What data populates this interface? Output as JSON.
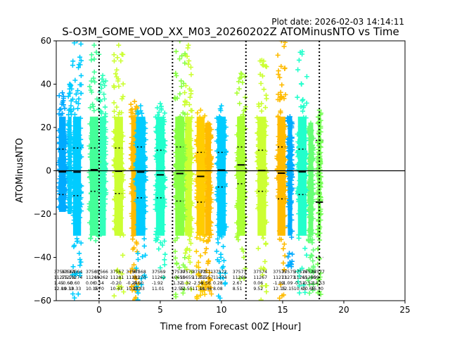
{
  "plot_date": "Plot date: 2026-02-03 14:14:11",
  "chart_data": {
    "type": "scatter",
    "title": "S-O3M_GOME_VOD_XX_M03_20260202Z ATOMinusNTO vs Time",
    "xlabel": "Time from Forecast 00Z [Hour]",
    "ylabel": "ATOMinusNTO",
    "xlim": [
      -3.5,
      25
    ],
    "ylim": [
      -60,
      60
    ],
    "xticks": [
      0,
      5,
      10,
      15,
      20,
      25
    ],
    "yticks": [
      -60,
      -40,
      -20,
      0,
      20,
      40,
      60
    ],
    "zero_line": 0,
    "vertical_lines": [
      0,
      6,
      12,
      18
    ],
    "orbits": [
      {
        "x": -3.0,
        "orbit": "37563",
        "count": "11275",
        "mean": "1.45",
        "std": "12.89",
        "color": "#00aaff",
        "top": 36,
        "bottom": -19,
        "median": -0.5,
        "width": 0.55,
        "upper": 10,
        "lower": -11
      },
      {
        "x": -1.8,
        "orbit": "37564",
        "count": "11274",
        "mean": "-0.60",
        "std": "10.33",
        "color": "#00ccff",
        "top": 60,
        "bottom": -60,
        "median": -0.6,
        "width": 0.65,
        "upper": 10.5,
        "lower": -11.5
      },
      {
        "x": -0.4,
        "orbit": "37565",
        "count": "11269",
        "mean": "0.06",
        "std": "10.15",
        "color": "#44ff99",
        "top": 58,
        "bottom": -33,
        "median": 0.5,
        "width": 0.7,
        "upper": 10.5,
        "lower": -9.5
      },
      {
        "x": 1.6,
        "orbit": "37567",
        "count": "11281",
        "mean": "-0.20",
        "std": "10.43",
        "color": "#ccff33",
        "top": 58,
        "bottom": -60,
        "median": -0.2,
        "width": 0.7,
        "upper": 10.5,
        "lower": -10.5
      },
      {
        "x": 3.4,
        "orbit": "37568",
        "count": "11270",
        "mean": "-0.60",
        "std": "11.83",
        "color": "#00ccff",
        "top": 30,
        "bottom": -60,
        "median": -0.6,
        "width": 0.75,
        "upper": 11,
        "lower": -12.5
      },
      {
        "x": 5.0,
        "orbit": "37569",
        "count": "11262",
        "mean": "-1.92",
        "std": "11.01",
        "color": "#22ffcc",
        "top": 31,
        "bottom": -50,
        "median": -1.9,
        "width": 0.7,
        "upper": 9.5,
        "lower": -12.5
      },
      {
        "x": 6.6,
        "orbit": "37570",
        "count": "10655",
        "mean": "-1.32",
        "std": "12.55",
        "color": "#88ff44",
        "top": 60,
        "bottom": -60,
        "median": -1.3,
        "width": 0.75,
        "upper": 11,
        "lower": -14
      },
      {
        "x": 8.3,
        "orbit": "37571",
        "count": "11257",
        "mean": "-2.56",
        "std": "11.46",
        "color": "#ffcc00",
        "top": 28,
        "bottom": -60,
        "median": -2.6,
        "width": 0.65,
        "upper": 8.5,
        "lower": -14.5
      },
      {
        "x": 10.0,
        "orbit": "37572",
        "count": "11274",
        "mean": "0.28",
        "std": "8.08",
        "color": "#00ccff",
        "top": 30,
        "bottom": -60,
        "median": 0.3,
        "width": 0.7,
        "upper": 8.5,
        "lower": -7.5
      },
      {
        "x": 11.6,
        "orbit": "37573",
        "count": "11269",
        "mean": "2.67",
        "std": "8.51",
        "color": "#aaff33",
        "top": 45,
        "bottom": -50,
        "median": 2.7,
        "width": 0.65,
        "upper": 11,
        "lower": -6
      },
      {
        "x": 13.3,
        "orbit": "37574",
        "count": "11267",
        "mean": "0.06",
        "std": "9.52",
        "color": "#ccff33",
        "top": 51,
        "bottom": -60,
        "median": 0.1,
        "width": 0.7,
        "upper": 9.5,
        "lower": -9.5
      },
      {
        "x": 14.9,
        "orbit": "37575",
        "count": "11273",
        "mean": "-1.09",
        "std": "12.15",
        "color": "#ffbb00",
        "top": 60,
        "bottom": -60,
        "median": -1.1,
        "width": 0.65,
        "upper": 11,
        "lower": -13
      },
      {
        "x": 16.6,
        "orbit": "37576",
        "count": "11265",
        "mean": "-0.51",
        "std": "10.65",
        "color": "#22ffcc",
        "top": 55,
        "bottom": -60,
        "median": -0.5,
        "width": 0.7,
        "upper": 10,
        "lower": -11
      },
      {
        "x": 18.0,
        "orbit": "37577",
        "count": "309",
        "mean": "-14.53",
        "std": "15.30",
        "color": "#77ff55",
        "top": 28,
        "bottom": -60,
        "median": -14.5,
        "width": 0.25,
        "upper": 14,
        "lower": -40
      }
    ],
    "extra_orbits": [
      {
        "x": -2.4,
        "orbit": "37564",
        "count": "11274",
        "mean": "-0.60",
        "std": "10.33",
        "color": "#00ccff",
        "top": 40,
        "bottom": -20,
        "width": 0.3
      },
      {
        "x": 0.3,
        "orbit": "37566",
        "count": "11262",
        "mean": "0.54",
        "std": "9.70",
        "color": "#33ffbb",
        "top": 44,
        "bottom": -30,
        "width": 0.5
      },
      {
        "x": 2.9,
        "orbit": "37567",
        "count": "11281",
        "mean": "-0.20",
        "std": "10.43",
        "color": "#ffbb00",
        "top": 32,
        "bottom": -60,
        "width": 0.55
      },
      {
        "x": 7.3,
        "orbit": "37570",
        "count": "10655",
        "mean": "-1.32",
        "std": "12.55",
        "color": "#ccff33",
        "top": 58,
        "bottom": -60,
        "width": 0.55
      },
      {
        "x": 8.9,
        "orbit": "37571",
        "count": "11257",
        "mean": "-2.56",
        "std": "11.46",
        "color": "#ffbb00",
        "top": 22,
        "bottom": -60,
        "width": 0.5
      },
      {
        "x": 15.6,
        "orbit": "37575",
        "count": "11273",
        "mean": "-1.09",
        "std": "12.15",
        "color": "#00aaff",
        "top": 25,
        "bottom": -50,
        "width": 0.35
      },
      {
        "x": 17.3,
        "orbit": "37576",
        "count": "11265",
        "mean": "-0.51",
        "std": "10.65",
        "color": "#66ff77",
        "top": 22,
        "bottom": -60,
        "width": 0.4
      }
    ]
  }
}
